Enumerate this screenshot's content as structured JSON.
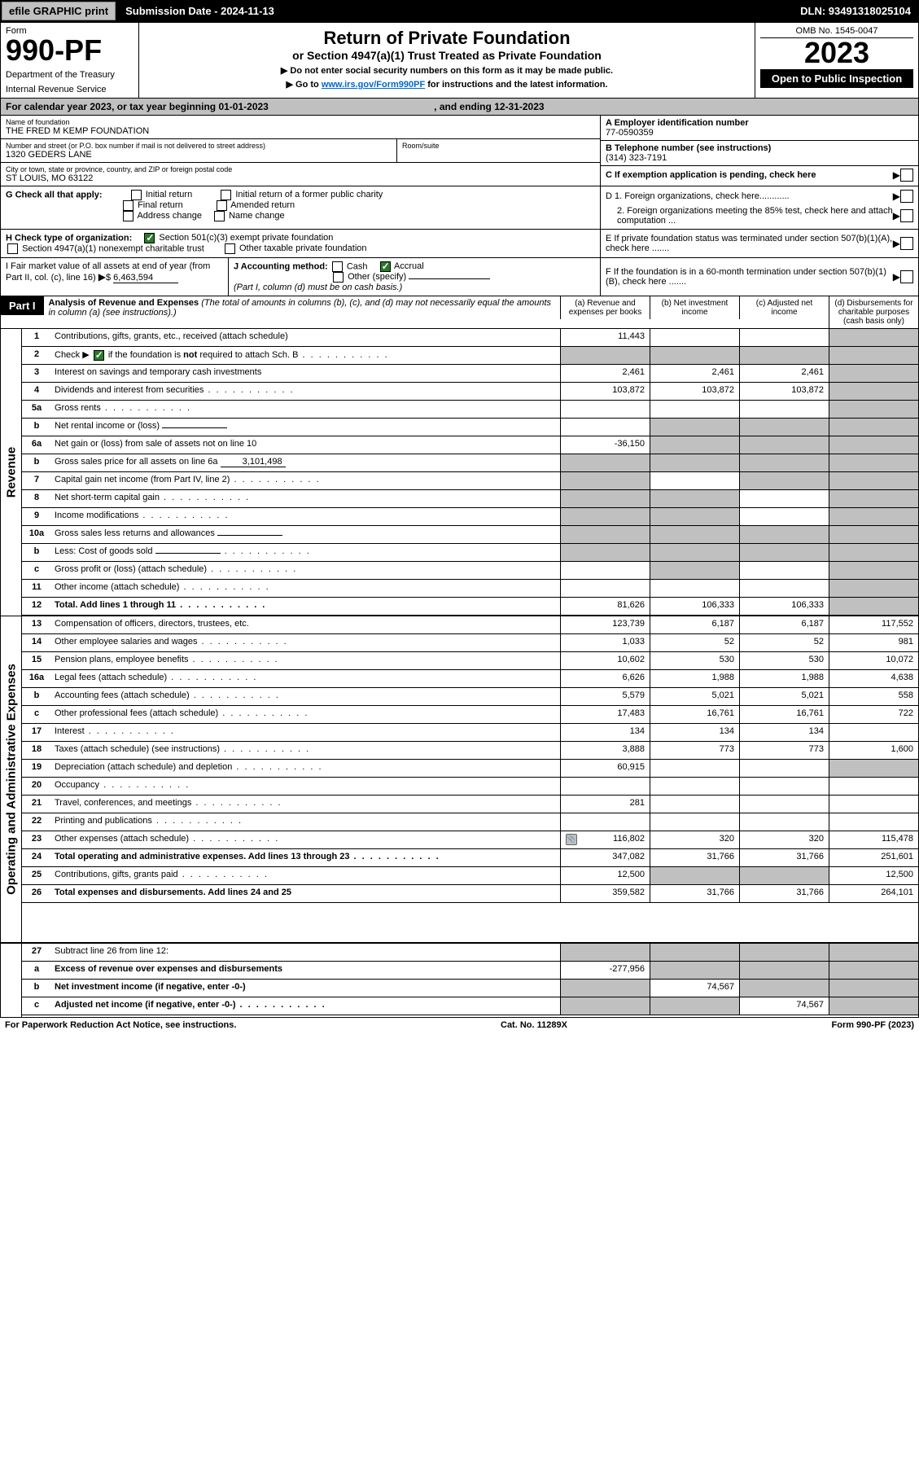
{
  "topbar": {
    "efile": "efile GRAPHIC print",
    "submission_label": "Submission Date - 2024-11-13",
    "dln_label": "DLN: 93491318025104"
  },
  "header": {
    "form_label": "Form",
    "form_number": "990-PF",
    "dept1": "Department of the Treasury",
    "dept2": "Internal Revenue Service",
    "title": "Return of Private Foundation",
    "subtitle": "or Section 4947(a)(1) Trust Treated as Private Foundation",
    "note1": "▶ Do not enter social security numbers on this form as it may be made public.",
    "note2_pre": "▶ Go to ",
    "note2_link": "www.irs.gov/Form990PF",
    "note2_post": " for instructions and the latest information.",
    "omb": "OMB No. 1545-0047",
    "year": "2023",
    "open_badge": "Open to Public Inspection"
  },
  "cal_year": {
    "text_pre": "For calendar year 2023, or tax year beginning ",
    "begin": "01-01-2023",
    "text_mid": " , and ending ",
    "end": "12-31-2023"
  },
  "name_block": {
    "label": "Name of foundation",
    "value": "THE FRED M KEMP FOUNDATION",
    "addr_label": "Number and street (or P.O. box number if mail is not delivered to street address)",
    "addr_value": "1320 GEDERS LANE",
    "room_label": "Room/suite",
    "city_label": "City or town, state or province, country, and ZIP or foreign postal code",
    "city_value": "ST LOUIS, MO  63122"
  },
  "right_info": {
    "a_label": "A Employer identification number",
    "a_value": "77-0590359",
    "b_label": "B Telephone number (see instructions)",
    "b_value": "(314) 323-7191",
    "c_label": "C If exemption application is pending, check here",
    "d1_label": "D 1. Foreign organizations, check here............",
    "d2_label": "2. Foreign organizations meeting the 85% test, check here and attach computation ...",
    "e_label": "E  If private foundation status was terminated under section 507(b)(1)(A), check here .......",
    "f_label": "F  If the foundation is in a 60-month termination under section 507(b)(1)(B), check here ......."
  },
  "g_section": {
    "label": "G Check all that apply:",
    "opts": [
      "Initial return",
      "Final return",
      "Address change",
      "Initial return of a former public charity",
      "Amended return",
      "Name change"
    ]
  },
  "h_section": {
    "label": "H Check type of organization:",
    "opt1": "Section 501(c)(3) exempt private foundation",
    "opt2": "Section 4947(a)(1) nonexempt charitable trust",
    "opt3": "Other taxable private foundation"
  },
  "i_section": {
    "label": "I Fair market value of all assets at end of year (from Part II, col. (c), line 16)",
    "value": "6,463,594"
  },
  "j_section": {
    "label": "J Accounting method:",
    "cash": "Cash",
    "accrual": "Accrual",
    "other": "Other (specify)",
    "note": "(Part I, column (d) must be on cash basis.)"
  },
  "part1": {
    "badge": "Part I",
    "title": "Analysis of Revenue and Expenses",
    "title_note": " (The total of amounts in columns (b), (c), and (d) may not necessarily equal the amounts in column (a) (see instructions).)",
    "cols": {
      "a": "(a) Revenue and expenses per books",
      "b": "(b) Net investment income",
      "c": "(c) Adjusted net income",
      "d": "(d) Disbursements for charitable purposes (cash basis only)"
    }
  },
  "side_labels": {
    "revenue": "Revenue",
    "expenses": "Operating and Administrative Expenses"
  },
  "rows": [
    {
      "ln": "1",
      "desc": "Contributions, gifts, grants, etc., received (attach schedule)",
      "a": "11,443",
      "b": "",
      "c": "",
      "d": "",
      "d_grey": true
    },
    {
      "ln": "2",
      "desc": "Check ▶ ☑ if the foundation is not required to attach Sch. B",
      "dots": true,
      "a": "",
      "b": "",
      "c": "",
      "d": "",
      "all_grey": true
    },
    {
      "ln": "3",
      "desc": "Interest on savings and temporary cash investments",
      "a": "2,461",
      "b": "2,461",
      "c": "2,461",
      "d": "",
      "d_grey": true
    },
    {
      "ln": "4",
      "desc": "Dividends and interest from securities",
      "dots": true,
      "a": "103,872",
      "b": "103,872",
      "c": "103,872",
      "d": "",
      "d_grey": true
    },
    {
      "ln": "5a",
      "desc": "Gross rents",
      "dots": true,
      "a": "",
      "b": "",
      "c": "",
      "d": "",
      "d_grey": true
    },
    {
      "ln": "b",
      "desc": "Net rental income or (loss)",
      "inline": "",
      "a": "",
      "b": "",
      "c": "",
      "d": "",
      "bcd_grey": true
    },
    {
      "ln": "6a",
      "desc": "Net gain or (loss) from sale of assets not on line 10",
      "a": "-36,150",
      "b": "",
      "c": "",
      "d": "",
      "bcd_grey": true
    },
    {
      "ln": "b",
      "desc": "Gross sales price for all assets on line 6a",
      "inline": "3,101,498",
      "a": "",
      "b": "",
      "c": "",
      "d": "",
      "all_grey": true
    },
    {
      "ln": "7",
      "desc": "Capital gain net income (from Part IV, line 2)",
      "dots": true,
      "a": "",
      "b": "",
      "c": "",
      "d": "",
      "a_grey": true,
      "cd_grey": true
    },
    {
      "ln": "8",
      "desc": "Net short-term capital gain",
      "dots": true,
      "a": "",
      "b": "",
      "c": "",
      "d": "",
      "ab_grey": true,
      "d_grey": true
    },
    {
      "ln": "9",
      "desc": "Income modifications",
      "dots": true,
      "a": "",
      "b": "",
      "c": "",
      "d": "",
      "ab_grey": true,
      "d_grey": true
    },
    {
      "ln": "10a",
      "desc": "Gross sales less returns and allowances",
      "inline": "",
      "a": "",
      "b": "",
      "c": "",
      "d": "",
      "all_grey": true
    },
    {
      "ln": "b",
      "desc": "Less: Cost of goods sold",
      "dots": true,
      "inline": "",
      "a": "",
      "b": "",
      "c": "",
      "d": "",
      "all_grey": true
    },
    {
      "ln": "c",
      "desc": "Gross profit or (loss) (attach schedule)",
      "dots": true,
      "a": "",
      "b": "",
      "c": "",
      "d": "",
      "b_grey": true,
      "d_grey": true
    },
    {
      "ln": "11",
      "desc": "Other income (attach schedule)",
      "dots": true,
      "a": "",
      "b": "",
      "c": "",
      "d": "",
      "d_grey": true
    },
    {
      "ln": "12",
      "desc": "Total. Add lines 1 through 11",
      "dots": true,
      "bold": true,
      "a": "81,626",
      "b": "106,333",
      "c": "106,333",
      "d": "",
      "d_grey": true
    }
  ],
  "exp_rows": [
    {
      "ln": "13",
      "desc": "Compensation of officers, directors, trustees, etc.",
      "a": "123,739",
      "b": "6,187",
      "c": "6,187",
      "d": "117,552"
    },
    {
      "ln": "14",
      "desc": "Other employee salaries and wages",
      "dots": true,
      "a": "1,033",
      "b": "52",
      "c": "52",
      "d": "981"
    },
    {
      "ln": "15",
      "desc": "Pension plans, employee benefits",
      "dots": true,
      "a": "10,602",
      "b": "530",
      "c": "530",
      "d": "10,072"
    },
    {
      "ln": "16a",
      "desc": "Legal fees (attach schedule)",
      "dots": true,
      "a": "6,626",
      "b": "1,988",
      "c": "1,988",
      "d": "4,638"
    },
    {
      "ln": "b",
      "desc": "Accounting fees (attach schedule)",
      "dots": true,
      "a": "5,579",
      "b": "5,021",
      "c": "5,021",
      "d": "558"
    },
    {
      "ln": "c",
      "desc": "Other professional fees (attach schedule)",
      "dots": true,
      "a": "17,483",
      "b": "16,761",
      "c": "16,761",
      "d": "722"
    },
    {
      "ln": "17",
      "desc": "Interest",
      "dots": true,
      "a": "134",
      "b": "134",
      "c": "134",
      "d": ""
    },
    {
      "ln": "18",
      "desc": "Taxes (attach schedule) (see instructions)",
      "dots": true,
      "a": "3,888",
      "b": "773",
      "c": "773",
      "d": "1,600"
    },
    {
      "ln": "19",
      "desc": "Depreciation (attach schedule) and depletion",
      "dots": true,
      "a": "60,915",
      "b": "",
      "c": "",
      "d": "",
      "d_grey": true
    },
    {
      "ln": "20",
      "desc": "Occupancy",
      "dots": true,
      "a": "",
      "b": "",
      "c": "",
      "d": ""
    },
    {
      "ln": "21",
      "desc": "Travel, conferences, and meetings",
      "dots": true,
      "a": "281",
      "b": "",
      "c": "",
      "d": ""
    },
    {
      "ln": "22",
      "desc": "Printing and publications",
      "dots": true,
      "a": "",
      "b": "",
      "c": "",
      "d": ""
    },
    {
      "ln": "23",
      "desc": "Other expenses (attach schedule)",
      "dots": true,
      "icon": true,
      "a": "116,802",
      "b": "320",
      "c": "320",
      "d": "115,478"
    },
    {
      "ln": "24",
      "desc": "Total operating and administrative expenses. Add lines 13 through 23",
      "dots": true,
      "bold": true,
      "a": "347,082",
      "b": "31,766",
      "c": "31,766",
      "d": "251,601"
    },
    {
      "ln": "25",
      "desc": "Contributions, gifts, grants paid",
      "dots": true,
      "a": "12,500",
      "b": "",
      "c": "",
      "d": "12,500",
      "bc_grey": true
    },
    {
      "ln": "26",
      "desc": "Total expenses and disbursements. Add lines 24 and 25",
      "bold": true,
      "a": "359,582",
      "b": "31,766",
      "c": "31,766",
      "d": "264,101"
    }
  ],
  "final_rows": [
    {
      "ln": "27",
      "desc": "Subtract line 26 from line 12:",
      "a": "",
      "b": "",
      "c": "",
      "d": "",
      "all_grey": true
    },
    {
      "ln": "a",
      "desc": "Excess of revenue over expenses and disbursements",
      "bold": true,
      "a": "-277,956",
      "b": "",
      "c": "",
      "d": "",
      "bcd_grey": true
    },
    {
      "ln": "b",
      "desc": "Net investment income (if negative, enter -0-)",
      "bold": true,
      "a": "",
      "b": "74,567",
      "c": "",
      "d": "",
      "a_grey": true,
      "cd_grey": true
    },
    {
      "ln": "c",
      "desc": "Adjusted net income (if negative, enter -0-)",
      "bold": true,
      "dots": true,
      "a": "",
      "b": "",
      "c": "74,567",
      "d": "",
      "ab_grey": true,
      "d_grey": true
    }
  ],
  "footer": {
    "left": "For Paperwork Reduction Act Notice, see instructions.",
    "mid": "Cat. No. 11289X",
    "right": "Form 990-PF (2023)"
  },
  "styling": {
    "grey_bg": "#c0c0c0",
    "black": "#000000",
    "link_color": "#0066cc",
    "check_green": "#2a7a2a"
  }
}
